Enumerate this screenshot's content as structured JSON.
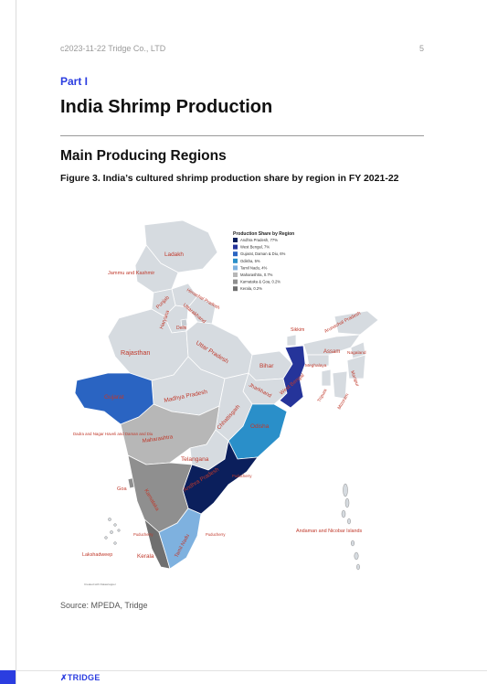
{
  "header": {
    "copyright": "c2023-11-22 Tridge Co., LTD",
    "page_number": "5"
  },
  "part_label": "Part I",
  "title": "India Shrimp Production",
  "subtitle": "Main Producing Regions",
  "caption": "Figure 3. India’s cultured shrimp production share by region in FY 2021-22",
  "map": {
    "legend_title": "Production Share by Region",
    "legend": [
      {
        "label": "Andhra Pradesh, 77%",
        "color": "#0b1f5c"
      },
      {
        "label": "West Bengal, 7%",
        "color": "#25349a"
      },
      {
        "label": "Gujarat, Daman & Diu, 6%",
        "color": "#2a64c2"
      },
      {
        "label": "Odisha, 5%",
        "color": "#2a8fc9"
      },
      {
        "label": "Tamil Nadu, 4%",
        "color": "#7eb1df"
      },
      {
        "label": "Maharashtra, 0.7%",
        "color": "#b7b7b7"
      },
      {
        "label": "Karnataka & Goa, 0.2%",
        "color": "#8f8f8f"
      },
      {
        "label": "Kerala, 0.2%",
        "color": "#6f6f6f"
      }
    ],
    "labels": {
      "ladakh": "Ladakh",
      "jk": "Jammu and Kashmir",
      "himachal": "Himachal Pradesh",
      "punjab": "Punjab",
      "uttarakhand": "Uttarakhand",
      "haryana": "Haryana",
      "delhi": "Delhi",
      "rajasthan": "Rajasthan",
      "up": "Uttar Pradesh",
      "sikkim": "Sikkim",
      "arunachal": "Arunachal Pradesh",
      "assam": "Assam",
      "nagaland": "Nagaland",
      "meghalaya": "Meghalaya",
      "manipur": "Manipur",
      "mizoram": "Mizoram",
      "tripura": "Tripura",
      "bihar": "Bihar",
      "jharkhand": "Jharkhand",
      "wb": "West Bengal",
      "gujarat": "Gujarat",
      "mp": "Madhya Pradesh",
      "chhattisgarh": "Chhattisgarh",
      "odisha": "Odisha",
      "dadra": "Dadra and Nagar Haveli and Daman and Diu",
      "maharashtra": "Maharashtra",
      "telangana": "Telangana",
      "ap": "Andhra Pradesh",
      "puducherry_e": "Puducherry",
      "goa": "Goa",
      "karnataka": "Karnataka",
      "puducherry_w": "Puducherry",
      "puducherry_s": "Puducherry",
      "tamilnadu": "Tamil Nadu",
      "kerala": "Kerala",
      "lakshadweep": "Lakshadweep",
      "andaman": "Andaman and Nicobar Islands",
      "credit": "Created with Datawrapper"
    }
  },
  "source": "Source: MPEDA, Tridge",
  "footer": {
    "brand": "TRIDGE",
    "brand_mark": "✗"
  }
}
